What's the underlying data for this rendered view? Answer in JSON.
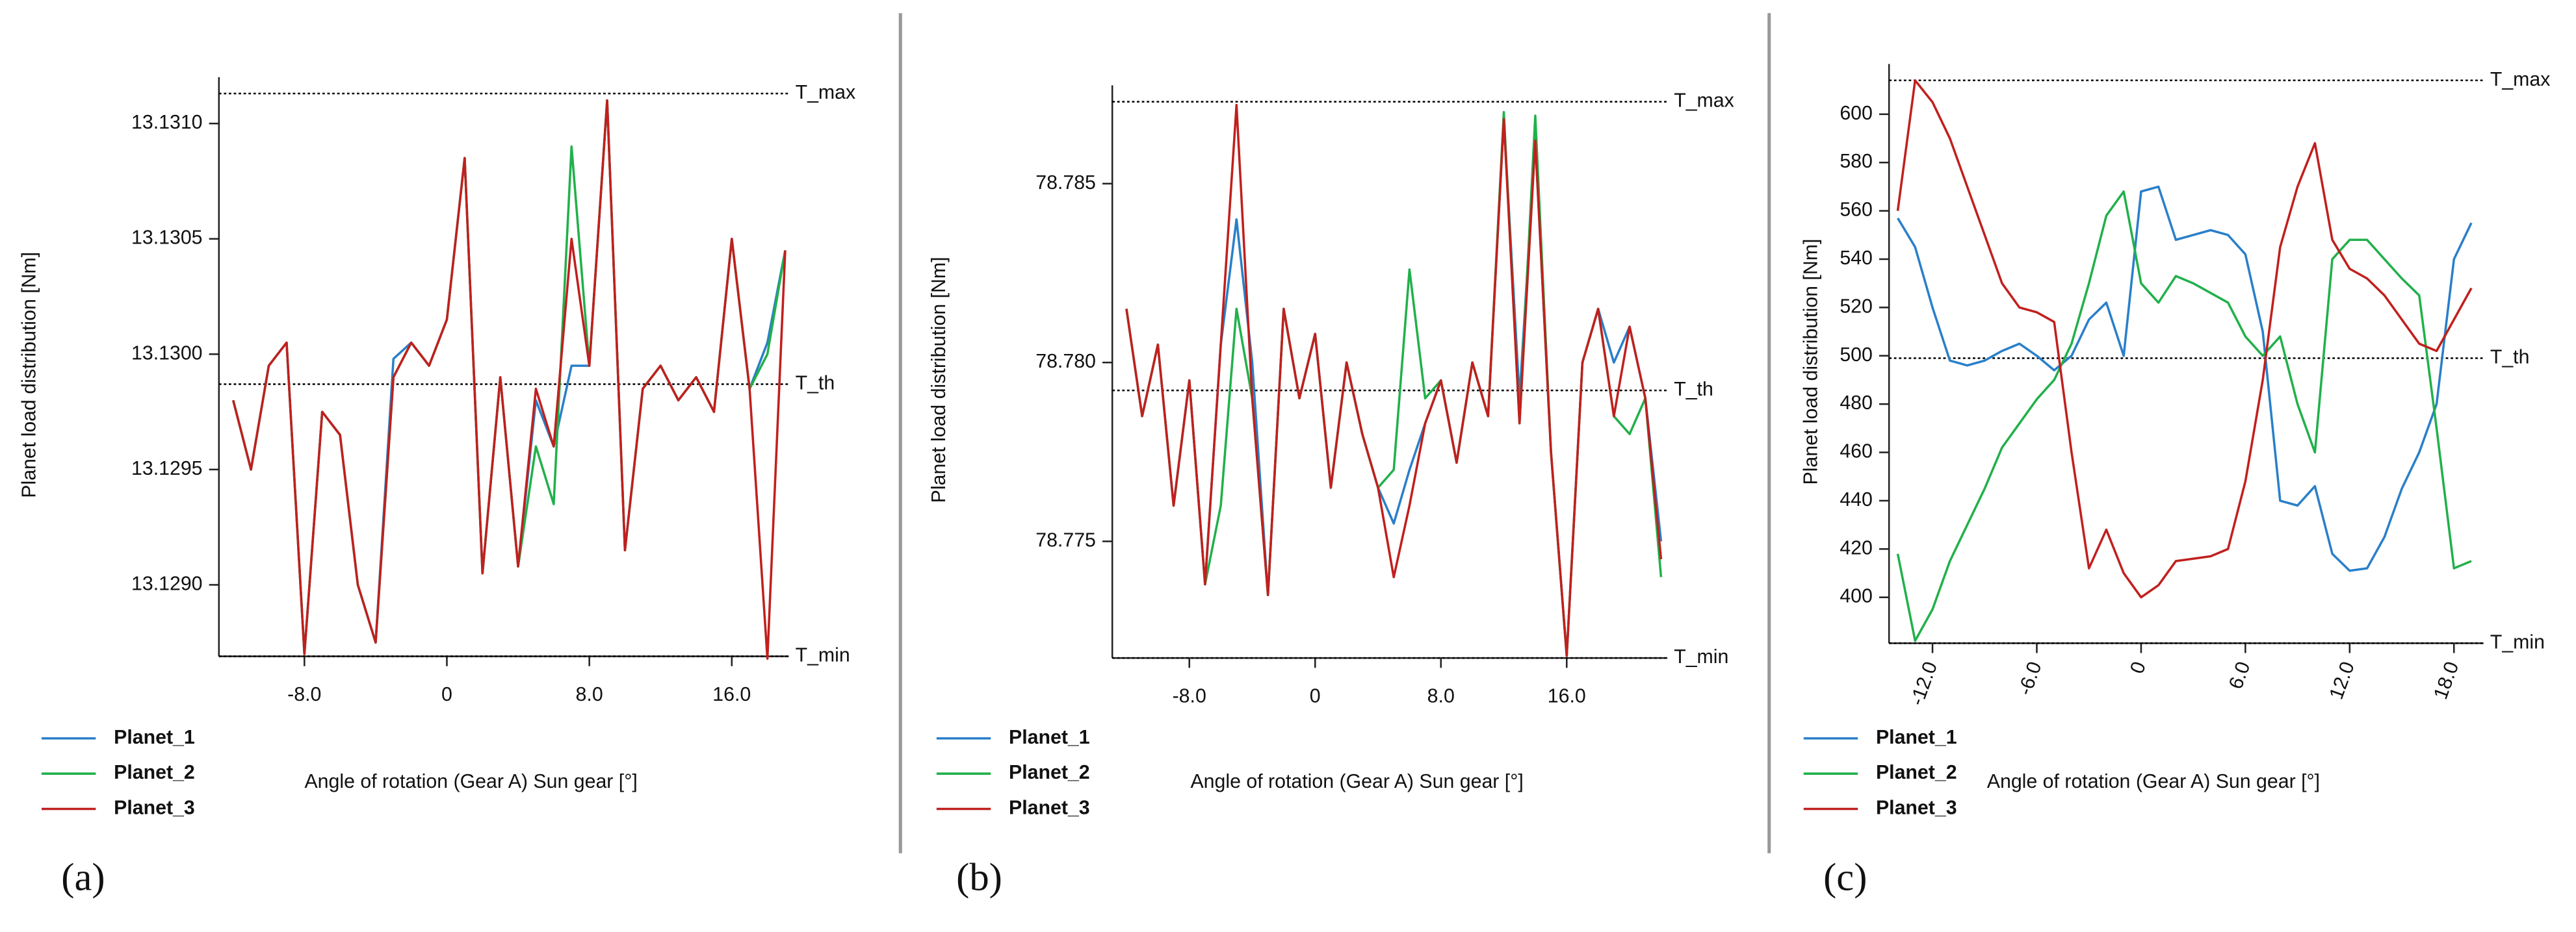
{
  "chart_data": [
    {
      "type": "line",
      "panel_label": "(a)",
      "y_label": "Planet load distribution [Nm]",
      "x_label": "Angle of rotation (Gear A) Sun gear [°]",
      "xlim": [
        -12.8,
        19.2
      ],
      "ylim": [
        13.12869,
        13.13113
      ],
      "xticks": [
        {
          "value": -8,
          "label": "-8.0"
        },
        0,
        {
          "value": 8,
          "label": "8.0"
        },
        {
          "value": 16,
          "label": "16.0"
        }
      ],
      "yticks": [
        {
          "value": 13.129,
          "label": "13.1290"
        },
        {
          "value": 13.1295,
          "label": "13.1295"
        },
        {
          "value": 13.13,
          "label": "13.1300"
        },
        {
          "value": 13.1305,
          "label": "13.1305"
        },
        {
          "value": 13.131,
          "label": "13.1310"
        }
      ],
      "reference_lines": [
        {
          "label": "T_max",
          "value": 13.13113
        },
        {
          "label": "T_th",
          "value": 13.12987
        },
        {
          "label": "T_min",
          "value": 13.12869
        }
      ],
      "x": [
        -12,
        -11,
        -10,
        -9,
        -8,
        -7,
        -6,
        -5,
        -4,
        -3,
        -2,
        -1,
        0,
        1,
        2,
        3,
        4,
        5,
        6,
        7,
        8,
        9,
        10,
        11,
        12,
        13,
        14,
        15,
        16,
        17,
        18,
        19
      ],
      "series": [
        {
          "name": "Planet_1",
          "color": "#2a7fc9",
          "values": [
            13.1298,
            13.1295,
            13.12995,
            13.13005,
            13.1287,
            13.12975,
            13.12965,
            13.129,
            13.12875,
            13.12998,
            13.13005,
            13.12995,
            13.13015,
            13.13085,
            13.12905,
            13.1299,
            13.12908,
            13.1298,
            13.1296,
            13.12995,
            13.12995,
            13.1311,
            13.12915,
            13.12985,
            13.12995,
            13.1298,
            13.1299,
            13.12975,
            13.1305,
            13.12985,
            13.13005,
            13.13045
          ]
        },
        {
          "name": "Planet_2",
          "color": "#22b04b",
          "values": [
            13.1298,
            13.1295,
            13.12995,
            13.13005,
            13.1287,
            13.12975,
            13.12965,
            13.129,
            13.12875,
            13.1299,
            13.13005,
            13.12995,
            13.13015,
            13.13085,
            13.12905,
            13.1299,
            13.12908,
            13.1296,
            13.12935,
            13.1309,
            13.12995,
            13.1311,
            13.12915,
            13.12985,
            13.12995,
            13.1298,
            13.1299,
            13.12975,
            13.1305,
            13.12985,
            13.13,
            13.13045
          ]
        },
        {
          "name": "Planet_3",
          "color": "#c0201e",
          "values": [
            13.1298,
            13.1295,
            13.12995,
            13.13005,
            13.1287,
            13.12975,
            13.12965,
            13.129,
            13.12875,
            13.1299,
            13.13005,
            13.12995,
            13.13015,
            13.13085,
            13.12905,
            13.1299,
            13.12908,
            13.12985,
            13.1296,
            13.1305,
            13.12995,
            13.1311,
            13.12915,
            13.12985,
            13.12995,
            13.1298,
            13.1299,
            13.12975,
            13.1305,
            13.12985,
            13.12868,
            13.13045
          ]
        }
      ]
    },
    {
      "type": "line",
      "panel_label": "(b)",
      "y_label": "Planet load distribution [Nm]",
      "x_label": "Angle of rotation (Gear A) Sun gear [°]",
      "xlim": [
        -12.9,
        22.4
      ],
      "ylim": [
        78.77174,
        78.78729
      ],
      "xticks": [
        {
          "value": -8,
          "label": "-8.0"
        },
        0,
        {
          "value": 8,
          "label": "8.0"
        },
        {
          "value": 16,
          "label": "16.0"
        }
      ],
      "yticks": [
        78.775,
        {
          "value": 78.78,
          "label": "78.780"
        },
        78.785
      ],
      "reference_lines": [
        {
          "label": "T_max",
          "value": 78.78729
        },
        {
          "label": "T_th",
          "value": 78.77922
        },
        {
          "label": "T_min",
          "value": 78.77174
        }
      ],
      "x": [
        -12,
        -11,
        -10,
        -9,
        -8,
        -7,
        -6,
        -5,
        -4,
        -3,
        -2,
        -1,
        0,
        1,
        2,
        3,
        4,
        5,
        6,
        7,
        8,
        9,
        10,
        11,
        12,
        13,
        14,
        15,
        16,
        17,
        18,
        19,
        20,
        21,
        22
      ],
      "series": [
        {
          "name": "Planet_1",
          "color": "#2a7fc9",
          "values": [
            78.7815,
            78.7785,
            78.7805,
            78.776,
            78.7795,
            78.7738,
            78.7805,
            78.784,
            78.78,
            78.7735,
            78.7815,
            78.779,
            78.7808,
            78.7765,
            78.78,
            78.778,
            78.7765,
            78.7755,
            78.777,
            78.7783,
            78.7795,
            78.7772,
            78.78,
            78.7785,
            78.7868,
            78.779,
            78.7862,
            78.7775,
            78.7718,
            78.78,
            78.7815,
            78.78,
            78.781,
            78.779,
            78.775
          ]
        },
        {
          "name": "Planet_2",
          "color": "#22b04b",
          "values": [
            78.7815,
            78.7785,
            78.7805,
            78.776,
            78.7795,
            78.7738,
            78.776,
            78.7815,
            78.779,
            78.7735,
            78.7815,
            78.779,
            78.7808,
            78.7765,
            78.78,
            78.778,
            78.7765,
            78.777,
            78.7826,
            78.779,
            78.7795,
            78.7772,
            78.78,
            78.7785,
            78.787,
            78.7783,
            78.7869,
            78.7775,
            78.7718,
            78.78,
            78.7815,
            78.7785,
            78.778,
            78.779,
            78.774
          ]
        },
        {
          "name": "Planet_3",
          "color": "#c0201e",
          "values": [
            78.7815,
            78.7785,
            78.7805,
            78.776,
            78.7795,
            78.7738,
            78.7805,
            78.7872,
            78.779,
            78.7735,
            78.7815,
            78.779,
            78.7808,
            78.7765,
            78.78,
            78.778,
            78.7765,
            78.774,
            78.776,
            78.7783,
            78.7795,
            78.7772,
            78.78,
            78.7785,
            78.7868,
            78.7783,
            78.7862,
            78.7775,
            78.7718,
            78.78,
            78.7815,
            78.7785,
            78.781,
            78.779,
            78.7745
          ]
        }
      ]
    },
    {
      "type": "line",
      "panel_label": "(c)",
      "y_label": "Planet load distribution [Nm]",
      "x_label": "Angle of rotation (Gear A) Sun gear [°]",
      "xlim": [
        -14.5,
        19.7
      ],
      "ylim": [
        381,
        614
      ],
      "xticks": [
        {
          "value": -12,
          "label": "-12.0"
        },
        {
          "value": -6,
          "label": "-6.0"
        },
        0,
        {
          "value": 6,
          "label": "6.0"
        },
        {
          "value": 12,
          "label": "12.0"
        },
        {
          "value": 18,
          "label": "18.0"
        }
      ],
      "yticks": [
        400,
        420,
        440,
        460,
        480,
        500,
        520,
        540,
        560,
        580,
        600
      ],
      "reference_lines": [
        {
          "label": "T_max",
          "value": 614
        },
        {
          "label": "T_th",
          "value": 499
        },
        {
          "label": "T_min",
          "value": 381
        }
      ],
      "x": [
        -14,
        -13,
        -12,
        -11,
        -10,
        -9,
        -8,
        -7,
        -6,
        -5,
        -4,
        -3,
        -2,
        -1,
        0,
        1,
        2,
        3,
        4,
        5,
        6,
        7,
        8,
        9,
        10,
        11,
        12,
        13,
        14,
        15,
        16,
        17,
        18,
        19
      ],
      "series": [
        {
          "name": "Planet_1",
          "color": "#2a7fc9",
          "values": [
            557,
            545,
            520,
            498,
            496,
            498,
            502,
            505,
            500,
            494,
            500,
            515,
            522,
            500,
            568,
            570,
            548,
            550,
            552,
            550,
            542,
            510,
            440,
            438,
            446,
            418,
            411,
            412,
            425,
            445,
            460,
            480,
            540,
            555
          ]
        },
        {
          "name": "Planet_2",
          "color": "#22b04b",
          "values": [
            418,
            382,
            395,
            415,
            430,
            445,
            462,
            472,
            482,
            490,
            505,
            530,
            558,
            568,
            530,
            522,
            533,
            530,
            526,
            522,
            508,
            500,
            508,
            480,
            460,
            540,
            548,
            548,
            540,
            532,
            525,
            470,
            412,
            415
          ]
        },
        {
          "name": "Planet_3",
          "color": "#c0201e",
          "values": [
            560,
            614,
            605,
            590,
            570,
            550,
            530,
            520,
            518,
            514,
            460,
            412,
            428,
            410,
            400,
            405,
            415,
            416,
            417,
            420,
            448,
            490,
            545,
            570,
            588,
            548,
            536,
            532,
            525,
            515,
            505,
            502,
            515,
            528
          ]
        }
      ]
    }
  ]
}
